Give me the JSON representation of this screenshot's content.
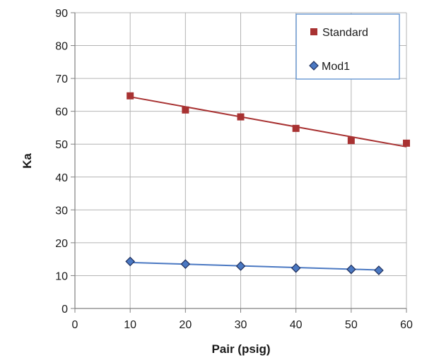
{
  "chart_data": {
    "type": "scatter",
    "title": "",
    "xlabel": "Pair (psig)",
    "ylabel": "Ka",
    "xlim": [
      0,
      60
    ],
    "ylim": [
      0,
      90
    ],
    "xticks": [
      0,
      10,
      20,
      30,
      40,
      50,
      60
    ],
    "yticks": [
      0,
      10,
      20,
      30,
      40,
      50,
      60,
      70,
      80,
      90
    ],
    "x_tick_labels": [
      "0",
      "10",
      "20",
      "30",
      "40",
      "50",
      "60"
    ],
    "y_tick_labels": [
      "0",
      "10",
      "20",
      "30",
      "40",
      "50",
      "60",
      "70",
      "80",
      "90"
    ],
    "grid": true,
    "legend_position": "top-right",
    "series": [
      {
        "name": "Standard",
        "marker": "square",
        "color": "#a83232",
        "points": [
          {
            "x": 10,
            "y": 64.7
          },
          {
            "x": 20,
            "y": 60.4
          },
          {
            "x": 30,
            "y": 58.3
          },
          {
            "x": 40,
            "y": 54.8
          },
          {
            "x": 50,
            "y": 51.1
          },
          {
            "x": 60,
            "y": 50.3
          }
        ],
        "trendline": {
          "x": [
            10,
            60
          ],
          "y": [
            64.4,
            49.2
          ]
        }
      },
      {
        "name": "Mod1",
        "marker": "diamond",
        "color": "#4a78c2",
        "edge_color": "#1f2f5c",
        "points": [
          {
            "x": 10,
            "y": 14.3
          },
          {
            "x": 20,
            "y": 13.5
          },
          {
            "x": 30,
            "y": 12.9
          },
          {
            "x": 40,
            "y": 12.3
          },
          {
            "x": 50,
            "y": 11.9
          },
          {
            "x": 55,
            "y": 11.6
          }
        ],
        "trendline": {
          "x": [
            10,
            55
          ],
          "y": [
            14.0,
            11.7
          ]
        }
      }
    ]
  }
}
